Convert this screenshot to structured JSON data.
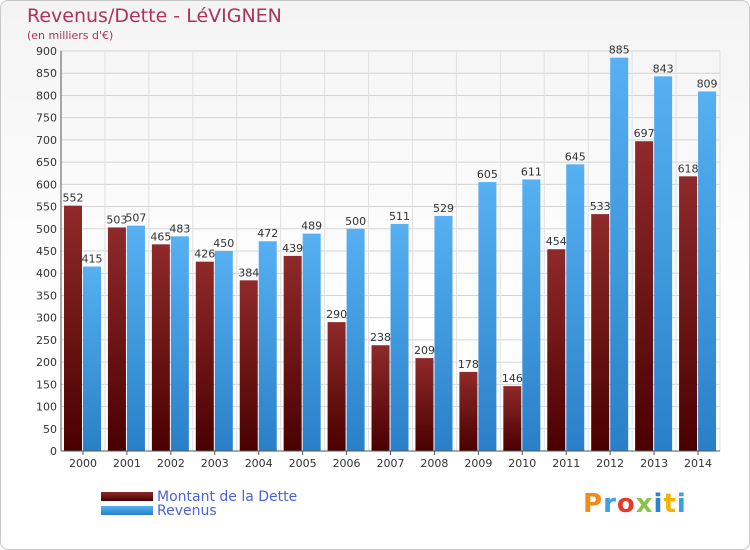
{
  "chart_data": {
    "type": "bar",
    "title": "Revenus/Dette - LéVIGNEN",
    "subtitle": "(en milliers d'€)",
    "categories": [
      "2000",
      "2001",
      "2002",
      "2003",
      "2004",
      "2005",
      "2006",
      "2007",
      "2008",
      "2009",
      "2010",
      "2011",
      "2012",
      "2013",
      "2014"
    ],
    "series": [
      {
        "name": "Montant de la Dette",
        "color": "#7a1a1a",
        "values": [
          552,
          503,
          465,
          426,
          384,
          439,
          290,
          238,
          209,
          178,
          146,
          454,
          533,
          697,
          618
        ]
      },
      {
        "name": "Revenus",
        "color": "#3d9be8",
        "values": [
          415,
          507,
          483,
          450,
          472,
          489,
          500,
          511,
          529,
          605,
          611,
          645,
          885,
          843,
          809
        ]
      }
    ],
    "yticks": [
      0,
      50,
      100,
      150,
      200,
      250,
      300,
      350,
      400,
      450,
      500,
      550,
      600,
      650,
      700,
      750,
      800,
      850,
      900
    ],
    "ylim": [
      0,
      900
    ],
    "grid": true,
    "legend_position": "bottom-left"
  },
  "logo": {
    "text": "Proxiti",
    "colors": [
      "#f08a1c",
      "#3aa0e0",
      "#e53a2c",
      "#8bc34a",
      "#2f7fd8",
      "#f0b400",
      "#3aa0e0"
    ]
  }
}
